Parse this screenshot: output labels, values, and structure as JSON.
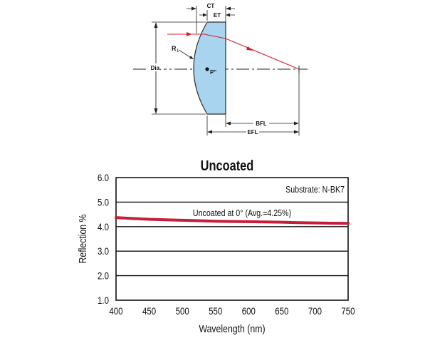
{
  "diagram": {
    "labels": {
      "ct": "CT",
      "et": "ET",
      "r1": "R",
      "r1_sub": "1",
      "dia": "Dia.",
      "p": "P\"",
      "bfl": "BFL",
      "efl": "EFL"
    },
    "colors": {
      "lens_fill": "#a9d4f0",
      "lens_stroke": "#2a2a2a",
      "ray": "#d0212a"
    }
  },
  "chart_data": {
    "type": "line",
    "title": "Uncoated",
    "xlabel": "Wavelength (nm)",
    "ylabel": "Reflection %",
    "xlim": [
      400,
      750
    ],
    "ylim": [
      1.0,
      6.0
    ],
    "x_ticks": [
      "400",
      "450",
      "500",
      "550",
      "600",
      "650",
      "700",
      "750"
    ],
    "y_ticks": [
      "1.0",
      "2.0",
      "3.0",
      "4.0",
      "5.0",
      "6.0"
    ],
    "annotations": {
      "substrate": "Substrate: N-BK7",
      "series_note": "Uncoated at 0°  (Avg.=4.25%)"
    },
    "grid": "horizontal",
    "series": [
      {
        "color": "#c41e3a",
        "x": [
          400,
          425,
          450,
          475,
          500,
          525,
          550,
          575,
          600,
          625,
          650,
          675,
          700,
          725,
          750
        ],
        "y": [
          4.37,
          4.33,
          4.3,
          4.28,
          4.26,
          4.24,
          4.22,
          4.21,
          4.2,
          4.19,
          4.18,
          4.16,
          4.15,
          4.14,
          4.13
        ]
      }
    ]
  }
}
